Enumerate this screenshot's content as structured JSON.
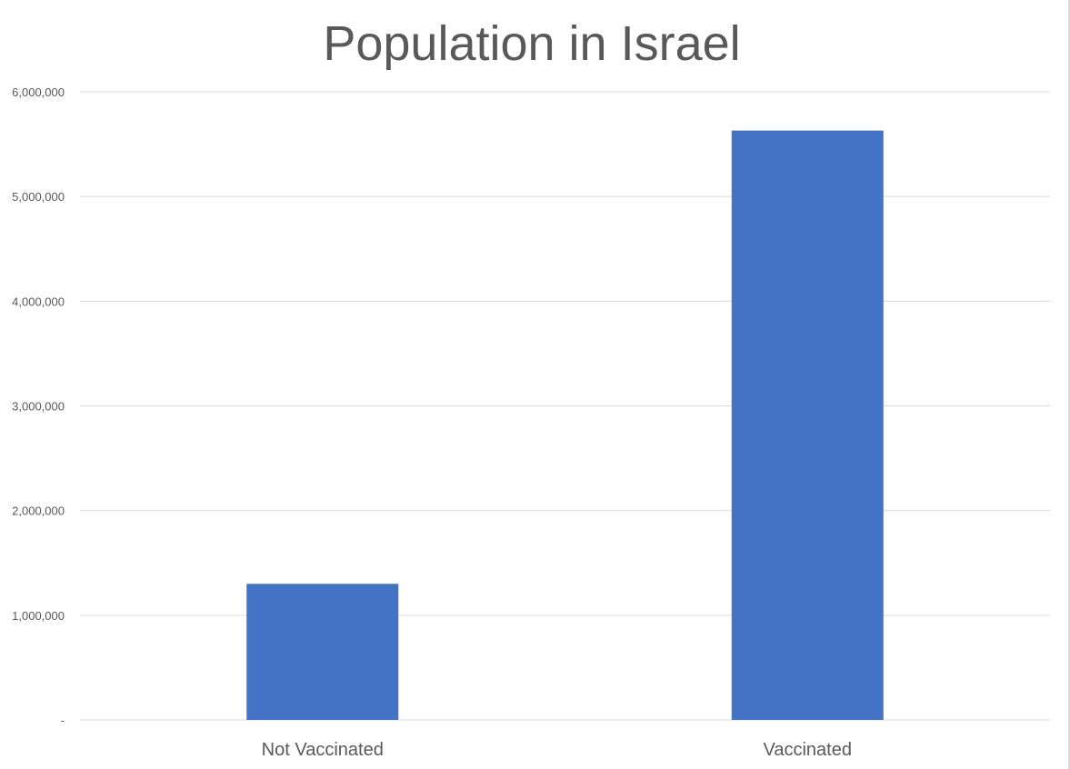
{
  "chart_data": {
    "type": "bar",
    "title": "Population in Israel",
    "xlabel": "",
    "ylabel": "",
    "categories": [
      "Not Vaccinated",
      "Vaccinated"
    ],
    "values": [
      1300000,
      5630000
    ],
    "ylim": [
      0,
      6000000
    ],
    "y_ticks": [
      0,
      1000000,
      2000000,
      3000000,
      4000000,
      5000000,
      6000000
    ],
    "y_tick_labels": [
      "-",
      "1,000,000",
      "2,000,000",
      "3,000,000",
      "4,000,000",
      "5,000,000",
      "6,000,000"
    ],
    "bar_color": "#4472C4",
    "grid": true,
    "legend": "none"
  }
}
